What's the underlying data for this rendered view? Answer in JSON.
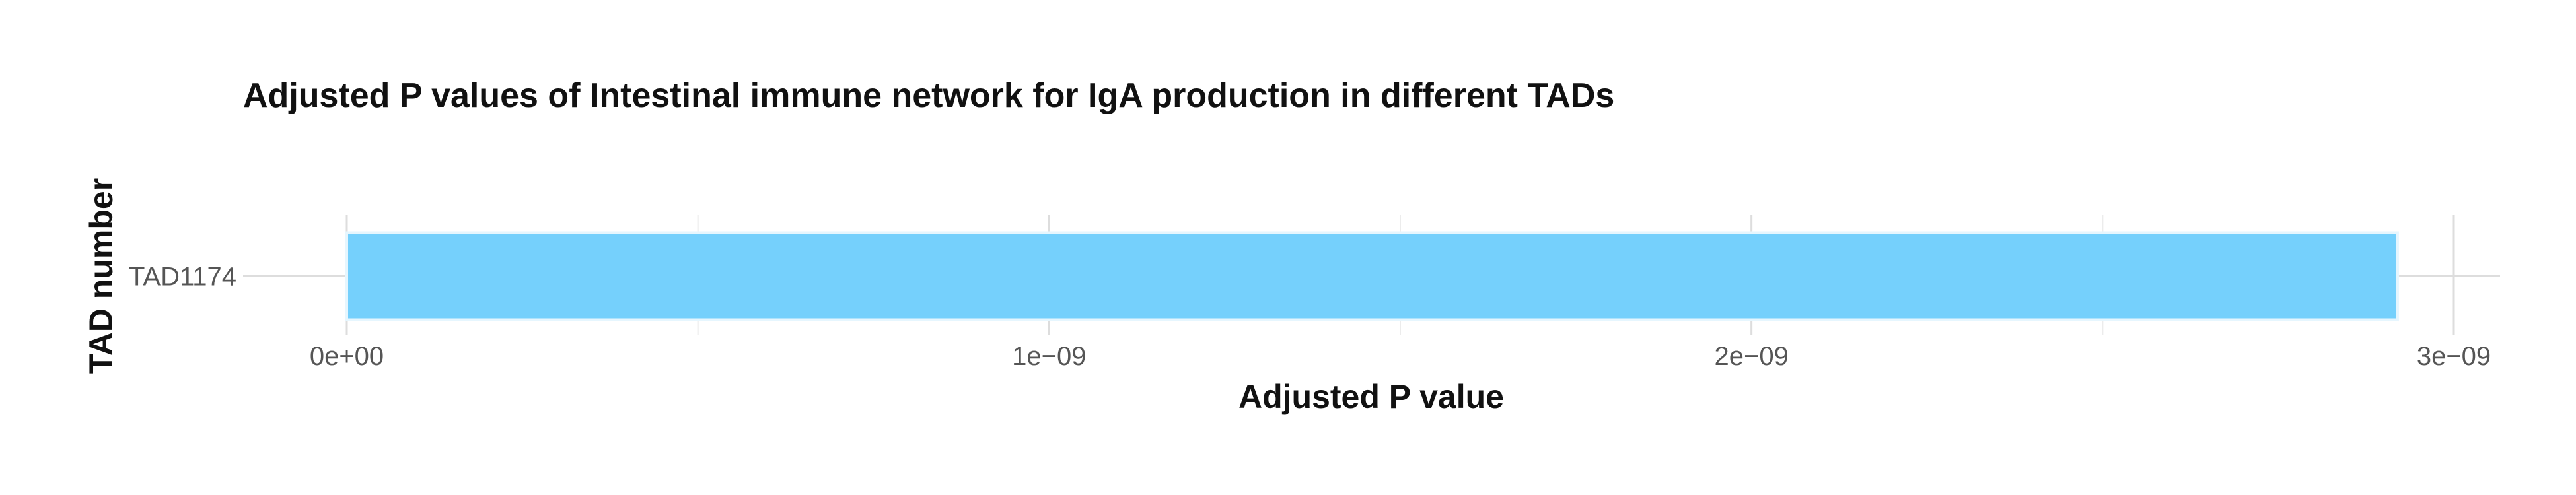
{
  "chart_data": {
    "type": "bar",
    "orientation": "horizontal",
    "title": "Adjusted P values of Intestinal immune network for IgA production in different TADs",
    "xlabel": "Adjusted P value",
    "ylabel": "TAD number",
    "categories": [
      "TAD1174"
    ],
    "values": [
      2.92e-09
    ],
    "xlim": [
      0,
      3.06e-09
    ],
    "x_ticks": [
      0,
      1e-09,
      2e-09,
      3e-09
    ],
    "x_tick_labels": [
      "0e+00",
      "1e−09",
      "2e−09",
      "3e−09"
    ],
    "x_minor_ticks": [
      5e-10,
      1.5e-09,
      2.5e-09
    ],
    "grid": true,
    "bar_color": "#75d0fc"
  }
}
